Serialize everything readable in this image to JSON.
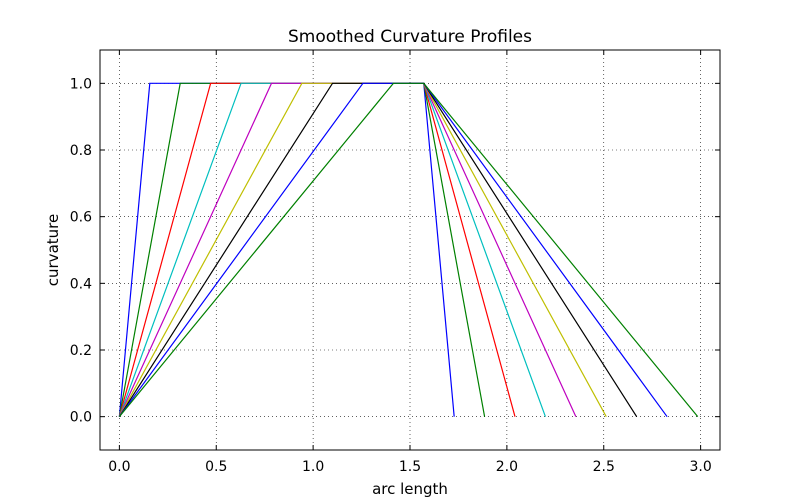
{
  "chart_data": {
    "type": "line",
    "title": "Smoothed Curvature Profiles",
    "xlabel": "arc length",
    "ylabel": "curvature",
    "xlim": [
      -0.1,
      3.1
    ],
    "ylim": [
      -0.1,
      1.1
    ],
    "xticks": [
      "0.0",
      "0.5",
      "1.0",
      "1.5",
      "2.0",
      "2.5",
      "3.0"
    ],
    "yticks": [
      "0.0",
      "0.2",
      "0.4",
      "0.6",
      "0.8",
      "1.0"
    ],
    "grid": true,
    "series": [
      {
        "color": "#0000ff",
        "x": [
          0.0,
          0.157,
          1.571,
          1.728
        ],
        "y": [
          0.0,
          1.0,
          1.0,
          0.0
        ]
      },
      {
        "color": "#008000",
        "x": [
          0.0,
          0.314,
          1.571,
          1.885
        ],
        "y": [
          0.0,
          1.0,
          1.0,
          0.0
        ]
      },
      {
        "color": "#ff0000",
        "x": [
          0.0,
          0.471,
          1.571,
          2.042
        ],
        "y": [
          0.0,
          1.0,
          1.0,
          0.0
        ]
      },
      {
        "color": "#00bfbf",
        "x": [
          0.0,
          0.628,
          1.571,
          2.199
        ],
        "y": [
          0.0,
          1.0,
          1.0,
          0.0
        ]
      },
      {
        "color": "#bf00bf",
        "x": [
          0.0,
          0.785,
          1.571,
          2.356
        ],
        "y": [
          0.0,
          1.0,
          1.0,
          0.0
        ]
      },
      {
        "color": "#bfbf00",
        "x": [
          0.0,
          0.942,
          1.571,
          2.513
        ],
        "y": [
          0.0,
          1.0,
          1.0,
          0.0
        ]
      },
      {
        "color": "#000000",
        "x": [
          0.0,
          1.1,
          1.571,
          2.67
        ],
        "y": [
          0.0,
          1.0,
          1.0,
          0.0
        ]
      },
      {
        "color": "#0000ff",
        "x": [
          0.0,
          1.257,
          1.571,
          2.827
        ],
        "y": [
          0.0,
          1.0,
          1.0,
          0.0
        ]
      },
      {
        "color": "#008000",
        "x": [
          0.0,
          1.414,
          1.571,
          2.985
        ],
        "y": [
          0.0,
          1.0,
          1.0,
          0.0
        ]
      }
    ]
  }
}
